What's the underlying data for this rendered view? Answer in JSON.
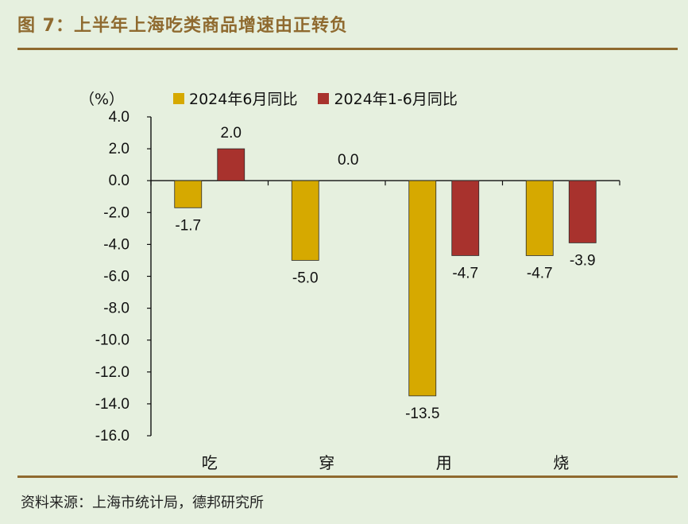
{
  "figure_title": "图 7：上半年上海吃类商品增速由正转负",
  "source": "资料来源：上海市统计局，德邦研究所",
  "chart_data": {
    "type": "bar",
    "title": "图 7：上半年上海吃类商品增速由正转负",
    "unit": "（%）",
    "categories": [
      "吃",
      "穿",
      "用",
      "烧"
    ],
    "series": [
      {
        "name": "2024年6月同比",
        "color": "#d6a900",
        "values": [
          -1.7,
          -5.0,
          -13.5,
          -4.7
        ],
        "labels": [
          "-1.7",
          "-5.0",
          "-13.5",
          "-4.7"
        ]
      },
      {
        "name": "2024年1-6月同比",
        "color": "#a8322d",
        "values": [
          2.0,
          0.0,
          -4.7,
          -3.9
        ],
        "labels": [
          "2.0",
          "0.0",
          "-4.7",
          "-3.9"
        ]
      }
    ],
    "ylim": [
      -16.0,
      4.0
    ],
    "yticks": [
      "4.0",
      "2.0",
      "0.0",
      "-2.0",
      "-4.0",
      "-6.0",
      "-8.0",
      "-10.0",
      "-12.0",
      "-14.0",
      "-16.0"
    ],
    "legend_position": "top"
  }
}
